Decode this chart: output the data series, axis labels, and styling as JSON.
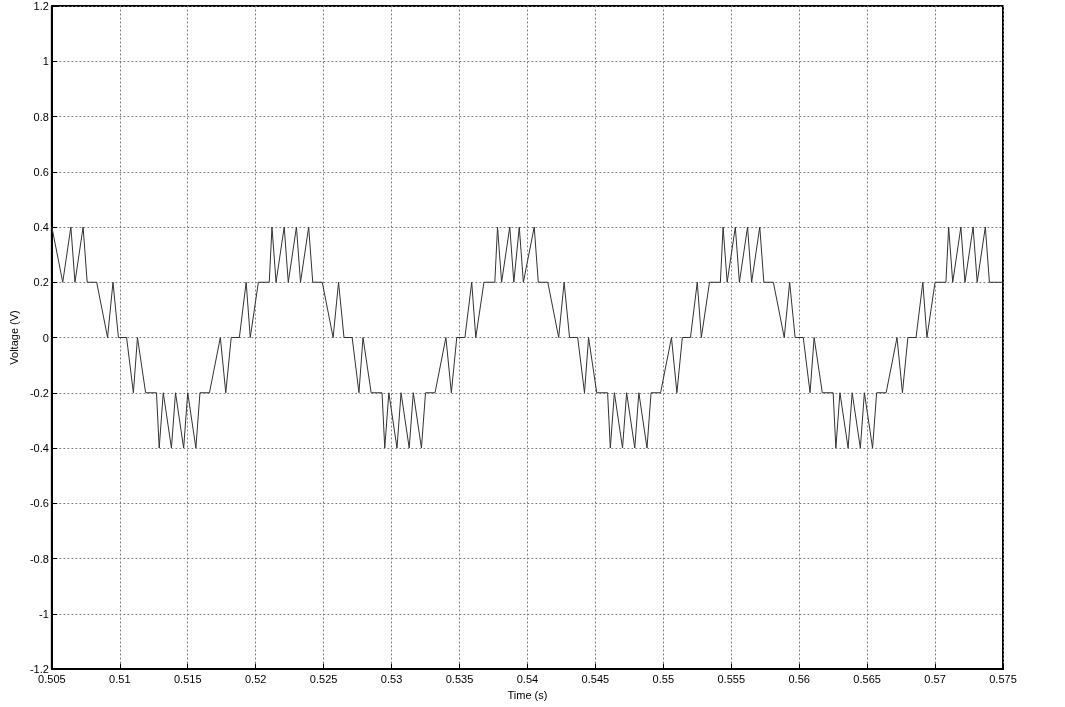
{
  "chart_data": {
    "type": "line",
    "xlabel": "Time (s)",
    "ylabel": "Voltage (V)",
    "xlim": [
      0.505,
      0.575
    ],
    "xticks": [
      0.505,
      0.51,
      0.515,
      0.52,
      0.525,
      0.53,
      0.535,
      0.54,
      0.545,
      0.55,
      0.555,
      0.56,
      0.565,
      0.57,
      0.575
    ],
    "ylim": [
      -1.2,
      1.2
    ],
    "yticks": [
      -1.2,
      -1,
      -0.8,
      -0.6,
      -0.4,
      -0.2,
      0,
      0.2,
      0.4,
      0.6,
      0.8,
      1,
      1.2
    ],
    "grid": true,
    "marker": "none",
    "line_style": "solid",
    "series": [
      {
        "color": "#333333",
        "x": [
          0.505,
          0.5058,
          0.5064,
          0.5067,
          0.5073,
          0.5076,
          0.5083,
          0.5091,
          0.5095,
          0.5099,
          0.5105,
          0.511,
          0.5113,
          0.5119,
          0.5127,
          0.5129,
          0.5132,
          0.5138,
          0.5141,
          0.5147,
          0.515,
          0.5156,
          0.5159,
          0.5166,
          0.5174,
          0.5178,
          0.5182,
          0.5188,
          0.5193,
          0.5196,
          0.5202,
          0.521,
          0.5212,
          0.5215,
          0.5221,
          0.5224,
          0.523,
          0.5233,
          0.5239,
          0.5242,
          0.5249,
          0.5257,
          0.5261,
          0.5265,
          0.5271,
          0.5276,
          0.5279,
          0.5285,
          0.5293,
          0.5295,
          0.5298,
          0.5304,
          0.5307,
          0.5313,
          0.5316,
          0.5322,
          0.5325,
          0.5332,
          0.534,
          0.5344,
          0.5348,
          0.5354,
          0.5359,
          0.5362,
          0.5368,
          0.5376,
          0.5378,
          0.5381,
          0.5387,
          0.539,
          0.5394,
          0.5397,
          0.5405,
          0.5408,
          0.5415,
          0.5423,
          0.5427,
          0.5431,
          0.5437,
          0.5442,
          0.5445,
          0.5451,
          0.5459,
          0.5461,
          0.5464,
          0.547,
          0.5473,
          0.5479,
          0.5482,
          0.5488,
          0.5491,
          0.5498,
          0.5506,
          0.551,
          0.5514,
          0.552,
          0.5525,
          0.5528,
          0.5534,
          0.5542,
          0.5544,
          0.5547,
          0.5553,
          0.5556,
          0.5562,
          0.5565,
          0.5571,
          0.5574,
          0.5581,
          0.5589,
          0.5593,
          0.5597,
          0.5603,
          0.5608,
          0.5611,
          0.5617,
          0.5625,
          0.5627,
          0.563,
          0.5636,
          0.5639,
          0.5645,
          0.5648,
          0.5654,
          0.5657,
          0.5664,
          0.5672,
          0.5676,
          0.568,
          0.5686,
          0.5691,
          0.5694,
          0.57,
          0.5708,
          0.571,
          0.5713,
          0.5719,
          0.5722,
          0.5728,
          0.5731,
          0.5737,
          0.574,
          0.575
        ],
        "values": [
          0.4,
          0.2,
          0.4,
          0.2,
          0.4,
          0.2,
          0.2,
          0,
          0.2,
          0,
          0,
          -0.2,
          0,
          -0.2,
          -0.2,
          -0.4,
          -0.2,
          -0.4,
          -0.2,
          -0.4,
          -0.2,
          -0.4,
          -0.2,
          -0.2,
          0,
          -0.2,
          0,
          0,
          0.2,
          0,
          0.2,
          0.2,
          0.4,
          0.2,
          0.4,
          0.2,
          0.4,
          0.2,
          0.4,
          0.2,
          0.2,
          0,
          0.2,
          0,
          0,
          -0.2,
          0,
          -0.2,
          -0.2,
          -0.4,
          -0.2,
          -0.4,
          -0.2,
          -0.4,
          -0.2,
          -0.4,
          -0.2,
          -0.2,
          0,
          -0.2,
          0,
          0,
          0.2,
          0,
          0.2,
          0.2,
          0.4,
          0.2,
          0.4,
          0.2,
          0.4,
          0.2,
          0.4,
          0.2,
          0.2,
          0,
          0.2,
          0,
          0,
          -0.2,
          0,
          -0.2,
          -0.2,
          -0.4,
          -0.2,
          -0.4,
          -0.2,
          -0.4,
          -0.2,
          -0.4,
          -0.2,
          -0.2,
          0,
          -0.2,
          0,
          0,
          0.2,
          0,
          0.2,
          0.2,
          0.4,
          0.2,
          0.4,
          0.2,
          0.4,
          0.2,
          0.4,
          0.2,
          0.2,
          0,
          0.2,
          0,
          0,
          -0.2,
          0,
          -0.2,
          -0.2,
          -0.4,
          -0.2,
          -0.4,
          -0.2,
          -0.4,
          -0.2,
          -0.4,
          -0.2,
          -0.2,
          0,
          -0.2,
          0,
          0,
          0.2,
          0,
          0.2,
          0.2,
          0.4,
          0.2,
          0.4,
          0.2,
          0.4,
          0.2,
          0.4,
          0.2,
          0.2
        ]
      }
    ]
  }
}
